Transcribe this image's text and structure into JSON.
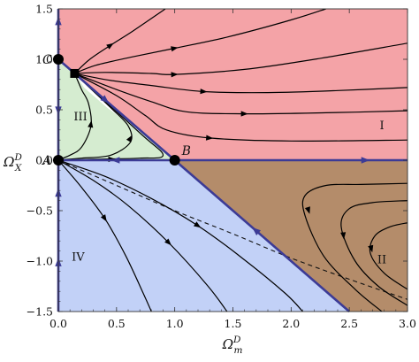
{
  "chart_data": {
    "type": "phase-portrait",
    "xlabel": {
      "main": "Ω",
      "sup": "D",
      "sub": "m"
    },
    "ylabel": {
      "main": "Ω",
      "sup": "D",
      "sub": "X"
    },
    "xlim": [
      0,
      3
    ],
    "ylim": [
      -1.5,
      1.5
    ],
    "xticks": [
      {
        "value": 0,
        "label": "0.0"
      },
      {
        "value": 0.5,
        "label": "0.5"
      },
      {
        "value": 1,
        "label": "1.0"
      },
      {
        "value": 1.5,
        "label": "1.5"
      },
      {
        "value": 2,
        "label": "2.0"
      },
      {
        "value": 2.5,
        "label": "2.5"
      },
      {
        "value": 3,
        "label": "3.0"
      }
    ],
    "yticks": [
      {
        "value": -1.5,
        "label": "−1.5"
      },
      {
        "value": -1,
        "label": "−1.0"
      },
      {
        "value": -0.5,
        "label": "−0.5"
      },
      {
        "value": 0,
        "label": "0.0"
      },
      {
        "value": 0.5,
        "label": "0.5"
      },
      {
        "value": 1,
        "label": "1.0"
      },
      {
        "value": 1.5,
        "label": "1.5"
      }
    ],
    "grid": false,
    "colors": {
      "region_I": "#f4a3a7",
      "region_II": "#b48c6a",
      "region_III": "#d5ecd0",
      "region_IV": "#c2d1f7",
      "separatrix": "#3c3b96",
      "trajectory": "#000000"
    },
    "regions": [
      {
        "name": "I",
        "polygon": [
          [
            0,
            1
          ],
          [
            1,
            0
          ],
          [
            3,
            0
          ],
          [
            3,
            1.5
          ],
          [
            0,
            1.5
          ]
        ],
        "label_at": [
          2.78,
          0.35
        ]
      },
      {
        "name": "II",
        "polygon": [
          [
            1,
            0
          ],
          [
            3,
            0
          ],
          [
            3,
            -1.5
          ],
          [
            2.5,
            -1.5
          ]
        ],
        "label_at": [
          2.78,
          -0.98
        ]
      },
      {
        "name": "III",
        "polygon": [
          [
            0,
            0
          ],
          [
            0,
            1
          ],
          [
            0.14,
            0.86
          ],
          [
            0.22,
            0.72
          ],
          [
            0.42,
            0.52
          ],
          [
            0.74,
            0.25
          ],
          [
            1,
            0
          ]
        ],
        "label_at": [
          0.19,
          0.44
        ]
      },
      {
        "name": "IV",
        "polygon": [
          [
            0,
            0
          ],
          [
            1,
            0
          ],
          [
            2.5,
            -1.5
          ],
          [
            0,
            -1.5
          ]
        ],
        "label_at": [
          0.17,
          -0.95
        ]
      }
    ],
    "separatrices": [
      {
        "name": "x-axis",
        "points": [
          [
            0,
            0
          ],
          [
            3,
            0
          ]
        ],
        "arrows": [
          {
            "at": [
              0.5,
              0
            ],
            "dir": "left"
          },
          {
            "at": [
              2.63,
              0
            ],
            "dir": "right"
          }
        ]
      },
      {
        "name": "y-axis",
        "points": [
          [
            0,
            -1.5
          ],
          [
            0,
            1.5
          ]
        ],
        "arrows": [
          {
            "at": [
              0,
              1.37
            ],
            "dir": "up"
          },
          {
            "at": [
              0,
              0.5
            ],
            "dir": "down"
          },
          {
            "at": [
              0,
              -0.33
            ],
            "dir": "up"
          },
          {
            "at": [
              0,
              -1.02
            ],
            "dir": "up"
          }
        ]
      },
      {
        "name": "diagonal",
        "points": [
          [
            0,
            1
          ],
          [
            2.5,
            -1.5
          ]
        ],
        "arrows": [
          {
            "at": [
              0.4,
              0.6
            ],
            "dir": "toward-B"
          },
          {
            "at": [
              1.7,
              -0.7
            ],
            "dir": "toward-B"
          }
        ]
      }
    ],
    "fixed_points": [
      {
        "label": "A",
        "x": 0,
        "y": 0,
        "marker": "circle"
      },
      {
        "label": "B",
        "x": 1,
        "y": 0,
        "marker": "circle"
      },
      {
        "label": "C",
        "x": 0,
        "y": 1,
        "marker": "circle"
      },
      {
        "label": "",
        "x": 0.14,
        "y": 0.86,
        "marker": "square"
      }
    ],
    "dashed_curve": [
      [
        0,
        0
      ],
      [
        0.5,
        -0.25
      ],
      [
        1,
        -0.5
      ],
      [
        1.5,
        -0.73
      ],
      [
        2,
        -0.97
      ],
      [
        2.5,
        -1.18
      ],
      [
        3,
        -1.38
      ]
    ],
    "trajectories": [
      {
        "region": "I",
        "points": [
          [
            0.14,
            0.86
          ],
          [
            0.27,
            1.0
          ],
          [
            0.45,
            1.14
          ],
          [
            0.64,
            1.28
          ],
          [
            0.92,
            1.5
          ]
        ],
        "arrow_at": [
          0.45,
          1.14
        ]
      },
      {
        "region": "I",
        "points": [
          [
            0.14,
            0.86
          ],
          [
            0.32,
            0.94
          ],
          [
            0.62,
            1.02
          ],
          [
            1.0,
            1.11
          ],
          [
            1.45,
            1.22
          ],
          [
            2.0,
            1.39
          ],
          [
            2.3,
            1.5
          ]
        ],
        "arrow_at": [
          1.0,
          1.11
        ]
      },
      {
        "region": "I",
        "points": [
          [
            0.14,
            0.86
          ],
          [
            0.4,
            0.87
          ],
          [
            0.8,
            0.86
          ],
          [
            1.0,
            0.85
          ],
          [
            1.6,
            0.9
          ],
          [
            2.2,
            1.0
          ],
          [
            3.0,
            1.16
          ]
        ],
        "arrow_at": [
          1.0,
          0.85
        ]
      },
      {
        "region": "I",
        "points": [
          [
            0.14,
            0.86
          ],
          [
            0.45,
            0.79
          ],
          [
            0.8,
            0.74
          ],
          [
            1.25,
            0.68
          ],
          [
            1.8,
            0.67
          ],
          [
            2.4,
            0.69
          ],
          [
            3.0,
            0.72
          ]
        ],
        "arrow_at": [
          1.25,
          0.68
        ]
      },
      {
        "region": "I",
        "points": [
          [
            0.14,
            0.86
          ],
          [
            0.5,
            0.7
          ],
          [
            0.8,
            0.58
          ],
          [
            1.1,
            0.48
          ],
          [
            1.6,
            0.46
          ],
          [
            2.3,
            0.47
          ],
          [
            3.0,
            0.49
          ]
        ],
        "arrow_at": [
          1.6,
          0.46
        ]
      },
      {
        "region": "I",
        "points": [
          [
            0.14,
            0.86
          ],
          [
            0.5,
            0.64
          ],
          [
            0.75,
            0.44
          ],
          [
            0.93,
            0.3
          ],
          [
            1.3,
            0.22
          ],
          [
            2.0,
            0.19
          ],
          [
            3.0,
            0.2
          ]
        ],
        "arrow_at": [
          1.3,
          0.22
        ]
      },
      {
        "region": "III",
        "points": [
          [
            0,
            0.005
          ],
          [
            0.1,
            0.05
          ],
          [
            0.2,
            0.13
          ],
          [
            0.28,
            0.34
          ],
          [
            0.26,
            0.56
          ],
          [
            0.2,
            0.7
          ],
          [
            0.14,
            0.86
          ]
        ],
        "arrow_at": [
          0.28,
          0.36
        ]
      },
      {
        "region": "III",
        "points": [
          [
            0,
            0.003
          ],
          [
            0.2,
            0.02
          ],
          [
            0.45,
            0.05
          ],
          [
            0.62,
            0.18
          ],
          [
            0.6,
            0.34
          ],
          [
            0.45,
            0.52
          ],
          [
            0.14,
            0.86
          ]
        ],
        "arrow_at": [
          0.62,
          0.22
        ]
      },
      {
        "region": "III",
        "points": [
          [
            0,
            0.001
          ],
          [
            0.3,
            0.01
          ],
          [
            0.7,
            0.02
          ],
          [
            0.9,
            0.05
          ],
          [
            0.7,
            0.27
          ],
          [
            0.14,
            0.86
          ]
        ],
        "arrow_at": [
          0.46,
          0.01
        ]
      },
      {
        "region": "IV",
        "points": [
          [
            0,
            0
          ],
          [
            0.2,
            -0.27
          ],
          [
            0.4,
            -0.58
          ],
          [
            0.58,
            -0.95
          ],
          [
            0.73,
            -1.32
          ],
          [
            0.8,
            -1.5
          ]
        ],
        "arrow_at": [
          0.4,
          -0.58
        ]
      },
      {
        "region": "IV",
        "points": [
          [
            0,
            0
          ],
          [
            0.3,
            -0.2
          ],
          [
            0.6,
            -0.45
          ],
          [
            0.95,
            -0.82
          ],
          [
            1.28,
            -1.24
          ],
          [
            1.45,
            -1.5
          ]
        ],
        "arrow_at": [
          0.95,
          -0.82
        ]
      },
      {
        "region": "IV",
        "points": [
          [
            0,
            0
          ],
          [
            0.4,
            -0.16
          ],
          [
            0.8,
            -0.38
          ],
          [
            1.2,
            -0.65
          ],
          [
            1.58,
            -0.97
          ],
          [
            1.95,
            -1.32
          ],
          [
            2.1,
            -1.5
          ]
        ],
        "arrow_at": [
          1.2,
          -0.65
        ]
      },
      {
        "region": "II",
        "points": [
          [
            3.0,
            -0.23
          ],
          [
            2.6,
            -0.24
          ],
          [
            2.3,
            -0.25
          ],
          [
            2.12,
            -0.35
          ],
          [
            2.12,
            -0.55
          ],
          [
            2.28,
            -0.95
          ],
          [
            2.55,
            -1.28
          ],
          [
            2.78,
            -1.5
          ]
        ],
        "arrow_at": [
          2.15,
          -0.5
        ]
      },
      {
        "region": "II",
        "points": [
          [
            3.0,
            -0.4
          ],
          [
            2.7,
            -0.42
          ],
          [
            2.5,
            -0.48
          ],
          [
            2.43,
            -0.66
          ],
          [
            2.55,
            -1.0
          ],
          [
            2.75,
            -1.25
          ],
          [
            3.0,
            -1.44
          ]
        ],
        "arrow_at": [
          2.45,
          -0.75
        ]
      },
      {
        "region": "II",
        "points": [
          [
            3.0,
            -0.62
          ],
          [
            2.85,
            -0.66
          ],
          [
            2.72,
            -0.75
          ],
          [
            2.68,
            -0.92
          ],
          [
            2.8,
            -1.12
          ],
          [
            3.0,
            -1.28
          ]
        ],
        "arrow_at": [
          2.69,
          -0.88
        ]
      }
    ],
    "region_labels": [
      "I",
      "II",
      "III",
      "IV"
    ]
  }
}
